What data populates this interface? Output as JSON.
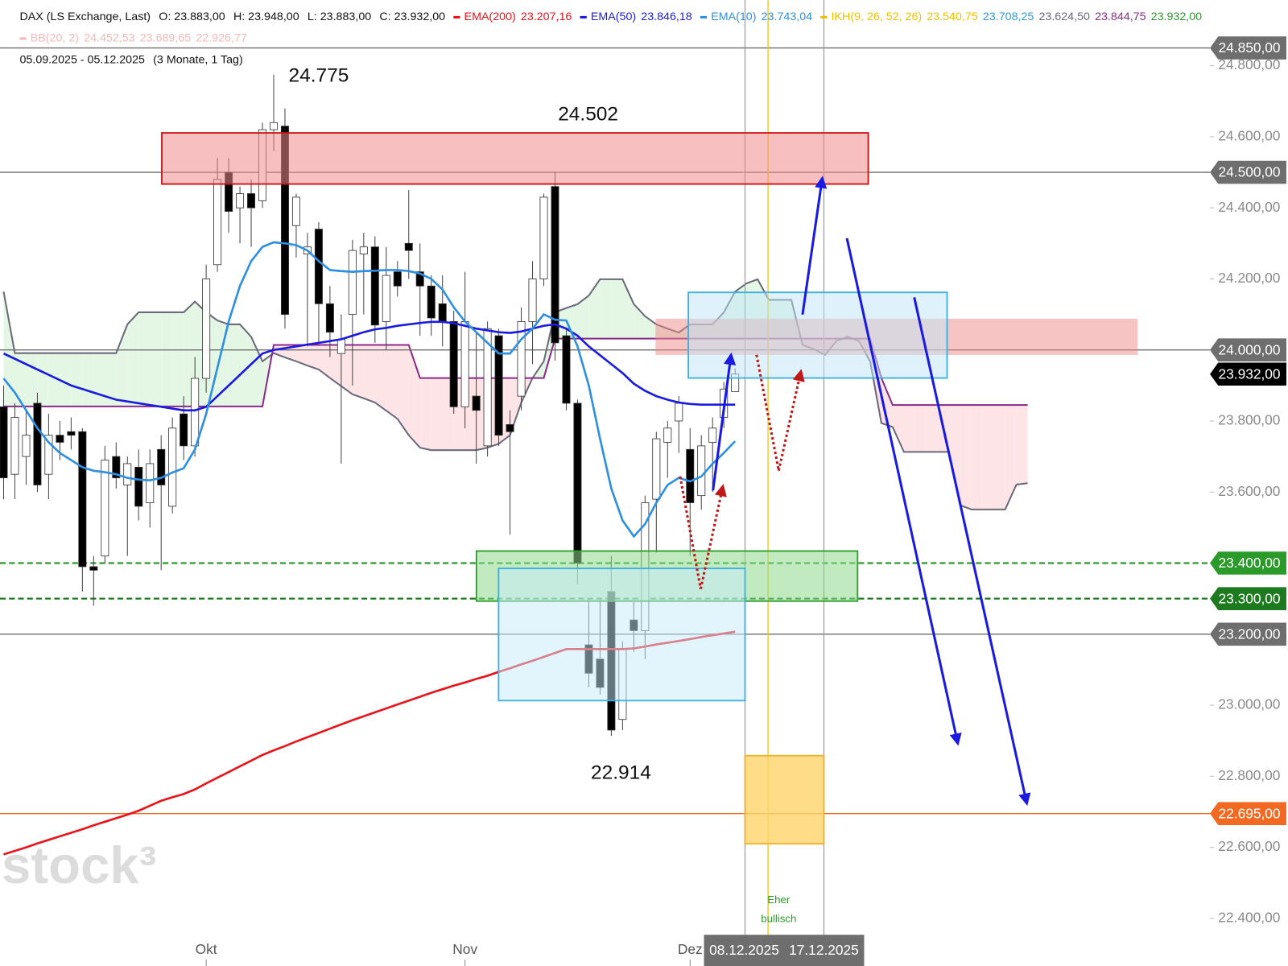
{
  "chart_data": {
    "type": "candlestick",
    "title": "DAX (LS Exchange, Last)",
    "ohlc_labels": [
      "O: 23.883,00",
      "H: 23.948,00",
      "L: 23.883,00",
      "C: 23.932,00"
    ],
    "period": "05.09.2025 - 05.12.2025",
    "interval": "(3 Monate, 1 Tag)",
    "categories": [
      null,
      null,
      null,
      null,
      null,
      null,
      null,
      null,
      null,
      null,
      null,
      null,
      null,
      null,
      null,
      null,
      null,
      null,
      "Okt",
      null,
      null,
      null,
      null,
      null,
      null,
      null,
      null,
      null,
      null,
      null,
      null,
      null,
      null,
      null,
      null,
      null,
      null,
      null,
      null,
      null,
      null,
      "Nov",
      null,
      null,
      null,
      null,
      null,
      null,
      null,
      null,
      null,
      null,
      null,
      null,
      null,
      null,
      null,
      null,
      null,
      null,
      null,
      "Dez",
      null,
      null,
      null,
      null
    ],
    "open": [
      23840,
      23650,
      23700,
      23850,
      23650,
      23760,
      23770,
      23770,
      23390,
      23420,
      23700,
      23620,
      23670,
      23570,
      23720,
      23560,
      23820,
      23730,
      23920,
      24240,
      24500,
      24400,
      24440,
      24420,
      24620,
      24630,
      24350,
      24270,
      24340,
      24130,
      23990,
      24100,
      24270,
      24290,
      24080,
      24220,
      24300,
      24220,
      24180,
      24130,
      24080,
      23840,
      23870,
      23730,
      24040,
      23790,
      23870,
      24080,
      24200,
      24460,
      24040,
      23850,
      23170,
      23130,
      23320,
      22960,
      23240,
      23210,
      23580,
      23740,
      23800,
      23720,
      23590,
      23740,
      23810,
      23883
    ],
    "high": [
      23900,
      23850,
      23830,
      23880,
      23820,
      23800,
      23810,
      23780,
      23420,
      23730,
      23740,
      23700,
      23720,
      23720,
      23760,
      23810,
      23870,
      23980,
      24240,
      24540,
      24540,
      24460,
      24480,
      24640,
      24775,
      24680,
      24440,
      24330,
      24360,
      24180,
      24100,
      24310,
      24330,
      24320,
      24290,
      24250,
      24450,
      24300,
      24210,
      24210,
      24110,
      24220,
      24050,
      24080,
      24060,
      23830,
      24120,
      24250,
      24440,
      24502,
      24060,
      23860,
      23300,
      23300,
      23420,
      23180,
      23290,
      23590,
      23770,
      23800,
      23870,
      23780,
      23760,
      23810,
      23910,
      23948
    ],
    "low": [
      23580,
      23580,
      23620,
      23600,
      23580,
      23690,
      23720,
      23320,
      23280,
      23400,
      23610,
      23420,
      23520,
      23500,
      23380,
      23540,
      23690,
      23700,
      23880,
      24220,
      24330,
      24300,
      24290,
      24400,
      24560,
      24060,
      24260,
      24010,
      24020,
      23980,
      23680,
      23900,
      24100,
      24020,
      24000,
      24150,
      24200,
      24040,
      24040,
      24010,
      23820,
      23780,
      23680,
      23700,
      23730,
      23480,
      23830,
      23960,
      24180,
      23970,
      23830,
      23340,
      23050,
      23030,
      22914,
      22930,
      23150,
      23130,
      23430,
      23640,
      23710,
      23420,
      23550,
      23600,
      23780,
      23883
    ],
    "close": [
      23640,
      23810,
      23760,
      23620,
      23760,
      23740,
      23760,
      23390,
      23380,
      23690,
      23640,
      23680,
      23560,
      23680,
      23620,
      23780,
      23730,
      23920,
      24200,
      24480,
      24390,
      24440,
      24400,
      24620,
      24640,
      24100,
      24430,
      24290,
      24130,
      24050,
      24030,
      24280,
      24290,
      24070,
      24210,
      24180,
      24280,
      24180,
      24090,
      24080,
      23840,
      24080,
      23830,
      24060,
      23760,
      23770,
      24080,
      24200,
      24430,
      24020,
      23850,
      23400,
      23090,
      23050,
      22930,
      23160,
      23210,
      23570,
      23750,
      23780,
      23850,
      23570,
      23730,
      23780,
      23890,
      23932
    ],
    "up_color": "#ffffff",
    "down_color": "#000000",
    "series": [
      {
        "name": "EMA(200)",
        "color": "#e8141c",
        "last_label": "23.207,16",
        "values": [
          22580,
          22590,
          22600,
          22611,
          22621,
          22631,
          22641,
          22651,
          22662,
          22672,
          22682,
          22692,
          22703,
          22717,
          22731,
          22741,
          22750,
          22763,
          22780,
          22796,
          22812,
          22828,
          22844,
          22860,
          22873,
          22885,
          22898,
          22910,
          22922,
          22934,
          22946,
          22958,
          22969,
          22980,
          22991,
          23002,
          23013,
          23024,
          23035,
          23045,
          23055,
          23064,
          23074,
          23083,
          23094,
          23104,
          23115,
          23125,
          23136,
          23147,
          23158,
          23158,
          23158,
          23158,
          23158,
          23158,
          23160,
          23165,
          23171,
          23176,
          23181,
          23186,
          23192,
          23197,
          23202,
          23207
        ]
      },
      {
        "name": "EMA(50)",
        "color": "#1c1ce0",
        "last_label": "23.846,18",
        "values": [
          23990,
          23975,
          23960,
          23945,
          23930,
          23915,
          23900,
          23890,
          23880,
          23870,
          23860,
          23855,
          23850,
          23845,
          23840,
          23835,
          23830,
          23830,
          23840,
          23870,
          23900,
          23930,
          23960,
          23990,
          24000,
          24005,
          24010,
          24015,
          24020,
          24025,
          24030,
          24040,
          24050,
          24058,
          24062,
          24068,
          24072,
          24076,
          24079,
          24079,
          24075,
          24068,
          24060,
          24055,
          24050,
          24048,
          24052,
          24060,
          24068,
          24072,
          24060,
          24040,
          24010,
          23985,
          23960,
          23935,
          23905,
          23885,
          23870,
          23860,
          23852,
          23848,
          23846,
          23846,
          23846,
          23846
        ]
      },
      {
        "name": "EMA(10)",
        "color": "#2f8fe0",
        "last_label": "23.743,04",
        "values": [
          23920,
          23880,
          23830,
          23780,
          23740,
          23710,
          23690,
          23670,
          23660,
          23656,
          23650,
          23640,
          23635,
          23633,
          23640,
          23655,
          23667,
          23720,
          23820,
          23950,
          24080,
          24180,
          24250,
          24290,
          24303,
          24300,
          24295,
          24280,
          24250,
          24225,
          24222,
          24220,
          24222,
          24223,
          24225,
          24225,
          24222,
          24215,
          24200,
          24170,
          24120,
          24080,
          24050,
          24020,
          23990,
          23990,
          24030,
          24060,
          24100,
          24085,
          24083,
          24010,
          23900,
          23750,
          23610,
          23520,
          23475,
          23510,
          23570,
          23620,
          23640,
          23630,
          23644,
          23680,
          23710,
          23743
        ]
      }
    ],
    "indicators": [
      {
        "name": "IKH(9, 26, 52, 26)",
        "color": "#f0c000",
        "labels": [
          "23.540,75",
          "23.708,25",
          "23.624,50",
          "23.844,75",
          "23.932,00"
        ],
        "label_colors": [
          "#f0c000",
          "#2f9ad8",
          "#6a6a7a",
          "#8a2a8a",
          "#2a9a2a"
        ]
      },
      {
        "name": "BB(20, 2)",
        "color": "#f4b8b8",
        "labels": [
          "24.452,53",
          "23.689,65",
          "22.926,77"
        ],
        "label_colors": [
          "#f4b8b8",
          "#f4b8b8",
          "#f4b8b8"
        ]
      }
    ],
    "cloud": {
      "span_a": {
        "color": "#6a6a7a",
        "values": [
          24164,
          23991,
          23991,
          23991,
          23991,
          23991,
          23991,
          23991,
          23991,
          23991,
          23991,
          24072,
          24106,
          24106,
          24106,
          24106,
          24106,
          24136,
          24106,
          24083,
          24072,
          24072,
          24037,
          23968,
          23991,
          23979,
          23968,
          23956,
          23945,
          23921,
          23898,
          23875,
          23864,
          23852,
          23829,
          23806,
          23760,
          23725,
          23718,
          23718,
          23718,
          23718,
          23718,
          23725,
          23736,
          23760,
          23852,
          23921,
          23968,
          24106,
          24118,
          24129,
          24153,
          24199,
          24199,
          24199,
          24129,
          24095,
          24072,
          24060,
          24049,
          24072,
          24072,
          24072,
          24106,
          24164,
          24187,
          24199,
          24141,
          24141,
          24141,
          24014,
          24002,
          23986,
          24025,
          24037,
          24025,
          23968,
          23794,
          23783,
          23713,
          23713,
          23713,
          23713,
          23713,
          23563,
          23551,
          23551,
          23551,
          23551,
          23621,
          23625
        ]
      },
      "span_b": {
        "color": "#8a2a8a",
        "values": [
          23841,
          23841,
          23841,
          23841,
          23841,
          23841,
          23841,
          23841,
          23841,
          23841,
          23841,
          23841,
          23841,
          23841,
          23841,
          23841,
          23841,
          23841,
          23841,
          23841,
          23841,
          23841,
          23841,
          23841,
          24014,
          24014,
          24014,
          24014,
          24014,
          24014,
          24014,
          24014,
          24014,
          24014,
          24014,
          24014,
          24014,
          23921,
          23921,
          23921,
          23921,
          23921,
          23921,
          23921,
          23921,
          23921,
          23921,
          23921,
          23921,
          24032,
          24032,
          24032,
          24032,
          24032,
          24032,
          24032,
          24032,
          24032,
          24032,
          24032,
          24032,
          24032,
          24032,
          24032,
          24032,
          24032,
          24032,
          24032,
          24032,
          24032,
          24032,
          24032,
          24032,
          24032,
          24032,
          24032,
          24032,
          24032,
          23921,
          23845,
          23845,
          23845,
          23845,
          23845,
          23845,
          23845,
          23845,
          23845,
          23845,
          23845,
          23845,
          23845
        ]
      },
      "bull_fill": "#e4f7e4",
      "bear_fill": "#fde4e6"
    },
    "ylim": [
      22266,
      24985
    ],
    "yticks": [
      {
        "value": 22400,
        "label": "22.400,00"
      },
      {
        "value": 22600,
        "label": "22.600,00"
      },
      {
        "value": 22800,
        "label": "22.800,00"
      },
      {
        "value": 23000,
        "label": "23.000,00"
      },
      {
        "value": 23200,
        "label": "23.200,00"
      },
      {
        "value": 23400,
        "label": "23.400,00"
      },
      {
        "value": 23600,
        "label": "23.600,00"
      },
      {
        "value": 23800,
        "label": "23.800,00"
      },
      {
        "value": 24000,
        "label": "24.000,00"
      },
      {
        "value": 24200,
        "label": "24.200,00"
      },
      {
        "value": 24400,
        "label": "24.400,00"
      },
      {
        "value": 24600,
        "label": "24.600,00"
      },
      {
        "value": 24800,
        "label": "24.800,00"
      }
    ],
    "levels": [
      {
        "value": 24850,
        "label": "24.850,00",
        "color": "#6e6e6e",
        "line": "solid"
      },
      {
        "value": 24500,
        "label": "24.500,00",
        "color": "#6e6e6e",
        "line": "solid"
      },
      {
        "value": 24000,
        "label": "24.000,00",
        "color": "#6e6e6e",
        "line": "solid"
      },
      {
        "value": 23932,
        "label": "23.932,00",
        "color": "#000000",
        "line": "none"
      },
      {
        "value": 23400,
        "label": "23.400,00",
        "color": "#2a9a2a",
        "line": "dashed"
      },
      {
        "value": 23300,
        "label": "23.300,00",
        "color": "#1e7a1e",
        "line": "dashed"
      },
      {
        "value": 23200,
        "label": "23.200,00",
        "color": "#6e6e6e",
        "line": "solid"
      },
      {
        "value": 22695,
        "label": "22.695,00",
        "color": "#f26a22",
        "line": "solid"
      }
    ],
    "zones": [
      {
        "low": 24467,
        "high": 24611,
        "fill": "#f08a8a",
        "stroke": "#d01010",
        "opacity": 0.55
      },
      {
        "low": 23986,
        "high": 24088,
        "fill": "#f08a8a",
        "stroke": "none",
        "opacity": 0.5
      },
      {
        "low": 23921,
        "high": 24162,
        "fill": "#bfe6f7",
        "stroke": "#3ab0e0",
        "opacity": 0.5
      },
      {
        "low": 23293,
        "high": 23434,
        "fill": "#8ed88e",
        "stroke": "#2aa02a",
        "opacity": 0.55
      },
      {
        "low": 23013,
        "high": 23385,
        "fill": "#c8ecfa",
        "stroke": "#3ab0e0",
        "opacity": 0.5
      },
      {
        "low": 22610,
        "high": 22858,
        "fill": "#ffd36a",
        "stroke": "#f0b030",
        "opacity": 0.8
      }
    ],
    "annotations": [
      "24.775",
      "24.502",
      "22.914"
    ],
    "note": [
      "Eher",
      "bullisch"
    ],
    "markers": [
      "08.12.2025",
      "17.12.2025"
    ],
    "watermark": "stock³"
  }
}
